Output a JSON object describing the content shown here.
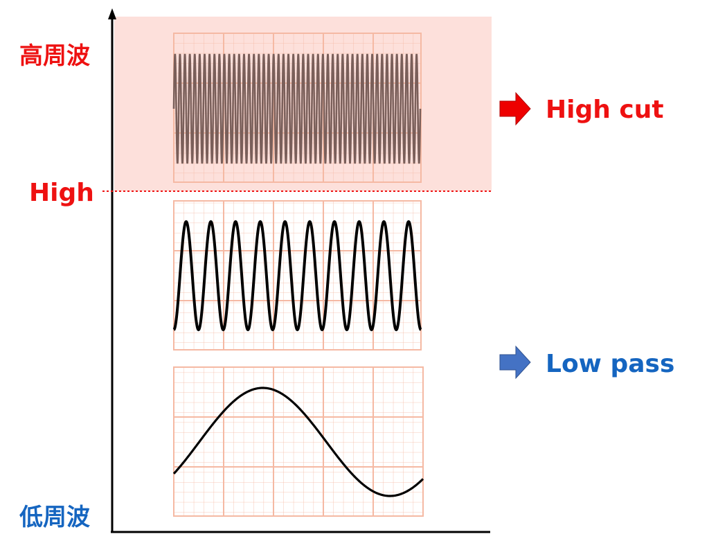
{
  "labels": {
    "high_frequency": "高周波",
    "low_frequency": "低周波",
    "cutoff": "High"
  },
  "actions": {
    "high_cut": "High cut",
    "low_pass": "Low pass"
  },
  "colors": {
    "high_accent": "#ee1111",
    "low_accent": "#1565c0",
    "cut_band": "#fde0db",
    "grid": "#f5b9a3",
    "high_wave": "#7a5f5a",
    "wave": "#000000",
    "arrow_high": "#ee0000",
    "arrow_low": "#4472c4"
  },
  "waves": [
    {
      "id": "high",
      "cycles": 50,
      "phase": "sine"
    },
    {
      "id": "mid",
      "cycles": 10,
      "phase": "cosine"
    },
    {
      "id": "low",
      "cycles": 1,
      "phase": "low-sine"
    }
  ]
}
